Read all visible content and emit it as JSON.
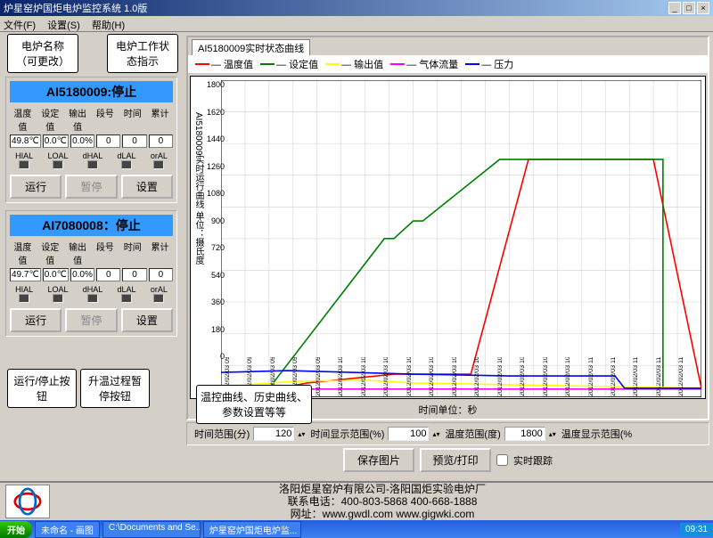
{
  "window": {
    "title": "炉星窑炉国炬电炉监控系统 1.0版"
  },
  "menu": {
    "file": "文件(F)",
    "settings": "设置(S)",
    "help": "帮助(H)"
  },
  "callouts": {
    "name": "电炉名称（可更改）",
    "state": "电炉工作状态指示",
    "run": "运行/停止按钮",
    "pause": "升温过程暂停按钮",
    "curve": "温控曲线、历史曲线、参数设置等等"
  },
  "panels": [
    {
      "title": "AI5180009:停止",
      "labels": [
        "温度值",
        "设定值",
        "输出值",
        "段号",
        "时间",
        "累计"
      ],
      "values": [
        "49.8℃",
        "0.0℃",
        "0.0%",
        "0",
        "0",
        "0"
      ],
      "inds": [
        "HIAL",
        "LOAL",
        "dHAL",
        "dLAL",
        "orAL"
      ],
      "btns": {
        "run": "运行",
        "pause": "暂停",
        "set": "设置"
      }
    },
    {
      "title": "AI7080008：停止",
      "labels": [
        "温度值",
        "设定值",
        "输出值",
        "段号",
        "时间",
        "累计"
      ],
      "values": [
        "49.7℃",
        "0.0℃",
        "0.0%",
        "0",
        "0",
        "0"
      ],
      "inds": [
        "HIAL",
        "LOAL",
        "dHAL",
        "dLAL",
        "orAL"
      ],
      "btns": {
        "run": "运行",
        "pause": "暂停",
        "set": "设置"
      }
    }
  ],
  "chart": {
    "tab": "AI5180009实时状态曲线",
    "ylabel": "AI5180009实时运行曲线 单位：摄氏度",
    "legend": [
      {
        "label": "温度值",
        "color": "#ff0000"
      },
      {
        "label": "设定值",
        "color": "#008000"
      },
      {
        "label": "输出值",
        "color": "#ffff00"
      },
      {
        "label": "气体流量",
        "color": "#ff00ff"
      },
      {
        "label": "压力",
        "color": "#0000ff"
      }
    ],
    "ylim": [
      0,
      1800
    ],
    "ytick_step": 180,
    "yticks": [
      "1800",
      "1620",
      "1440",
      "1260",
      "1080",
      "900",
      "720",
      "540",
      "360",
      "180",
      "0"
    ],
    "grid_color": "#d0d0d0",
    "background_color": "#ffffff",
    "xunit_label": "时间单位：秒",
    "xticks": [
      "2012/02/03 09:32:01",
      "2012/02/03 09:37:53",
      "2012/02/03 09:43:44",
      "2012/02/03 09:49:36",
      "2012/02/03 09:55:28",
      "2012/02/03 10:01:19",
      "2012/02/03 10:07:11",
      "2012/02/03 10:13:01",
      "2012/02/03 10:18:52",
      "2012/02/03 10:24:45",
      "2012/02/03 10:30:36",
      "2012/02/03 10:36:28",
      "2012/02/03 10:42:19",
      "2012/02/03 10:48:15",
      "2012/02/03 10:54:05",
      "2012/02/03 10:59:56",
      "2012/02/03 11:05:45",
      "2012/02/03 11:11:35",
      "2012/02/03 11:17:27",
      "2012/02/03 11:23:17",
      "2012/02/03 11:29:24"
    ],
    "series": {
      "red": [
        [
          0,
          50
        ],
        [
          12,
          50
        ],
        [
          14,
          60
        ],
        [
          18,
          80
        ],
        [
          36,
          130
        ],
        [
          52,
          130
        ],
        [
          64,
          1350
        ],
        [
          90,
          1350
        ],
        [
          100,
          50
        ]
      ],
      "green": [
        [
          0,
          50
        ],
        [
          10,
          50
        ],
        [
          34,
          900
        ],
        [
          36,
          900
        ],
        [
          40,
          1000
        ],
        [
          42,
          1000
        ],
        [
          58,
          1350
        ],
        [
          92,
          1350
        ],
        [
          92,
          50
        ],
        [
          100,
          50
        ]
      ],
      "yellow": [
        [
          0,
          60
        ],
        [
          16,
          90
        ],
        [
          30,
          95
        ],
        [
          40,
          80
        ],
        [
          60,
          70
        ],
        [
          80,
          60
        ],
        [
          100,
          50
        ]
      ],
      "magenta": [
        [
          0,
          45
        ],
        [
          100,
          45
        ]
      ],
      "blue": [
        [
          0,
          140
        ],
        [
          14,
          150
        ],
        [
          40,
          130
        ],
        [
          60,
          120
        ],
        [
          82,
          120
        ],
        [
          84,
          50
        ],
        [
          100,
          50
        ]
      ]
    }
  },
  "controls": {
    "time_range_label": "时间范围(分)",
    "time_range": "120",
    "time_disp_label": "时间显示范围(%)",
    "time_disp": "100",
    "temp_range_label": "温度范围(度)",
    "temp_range": "1800",
    "temp_disp_label": "温度显示范围(%",
    "save": "保存图片",
    "preview": "预览/打印",
    "track": "实时跟踪"
  },
  "footer": {
    "line1": "洛阳炬星窑炉有限公司-洛阳国炬实验电炉厂",
    "line2": "联系电话：400-803-5868 400-668-1888",
    "line3": "网址：www.gwdl.com  www.gigwki.com"
  },
  "taskbar": {
    "start": "开始",
    "items": [
      "未命名 - 画图",
      "C:\\Documents and Se...",
      "炉星窑炉国炬电炉监..."
    ],
    "time": "09:31"
  }
}
